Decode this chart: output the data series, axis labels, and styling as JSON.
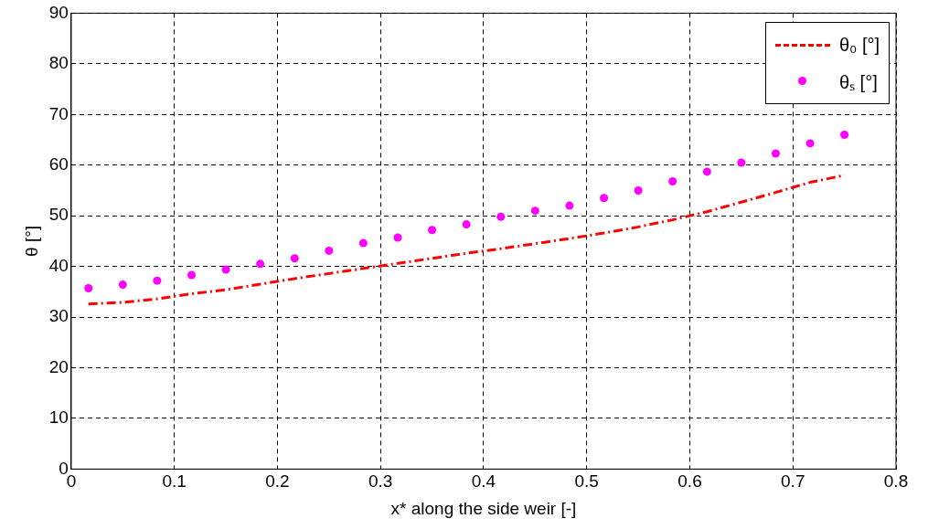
{
  "chart_data": {
    "type": "line",
    "xlabel": "x* along the side weir [-]",
    "ylabel": "θ [°]",
    "xlim": [
      0,
      0.8
    ],
    "xticks": [
      0,
      0.1,
      0.2,
      0.3,
      0.4,
      0.5,
      0.6,
      0.7,
      0.8
    ],
    "ylim": [
      0,
      90
    ],
    "yticks": [
      0,
      10,
      20,
      30,
      40,
      50,
      60,
      70,
      80,
      90
    ],
    "grid": true,
    "legend": "top right",
    "x": [
      0.0167,
      0.05,
      0.0833,
      0.1167,
      0.15,
      0.1833,
      0.2167,
      0.25,
      0.2833,
      0.3167,
      0.35,
      0.3833,
      0.4167,
      0.45,
      0.4833,
      0.5167,
      0.55,
      0.5833,
      0.6167,
      0.65,
      0.6833,
      0.7167,
      0.75
    ],
    "series": [
      {
        "name": "θ₀ [°]",
        "color": "#ff0000",
        "line_style": "dashed",
        "marker": "none",
        "values": [
          32.6,
          32.9,
          33.6,
          34.6,
          35.4,
          36.5,
          37.6,
          38.6,
          39.6,
          40.6,
          41.6,
          42.6,
          43.5,
          44.5,
          45.5,
          46.6,
          47.8,
          49.2,
          50.8,
          52.7,
          54.6,
          56.6,
          58.0
        ]
      },
      {
        "name": "θₛ [°]",
        "type": "scatter",
        "color": "#ff00ff",
        "marker": "circle",
        "values": [
          35.7,
          36.4,
          37.2,
          38.3,
          39.4,
          40.5,
          41.6,
          43.1,
          44.6,
          45.7,
          47.2,
          48.3,
          49.8,
          51.0,
          52.0,
          53.5,
          55.0,
          56.8,
          58.7,
          60.5,
          62.3,
          64.3,
          66.0
        ]
      }
    ]
  }
}
